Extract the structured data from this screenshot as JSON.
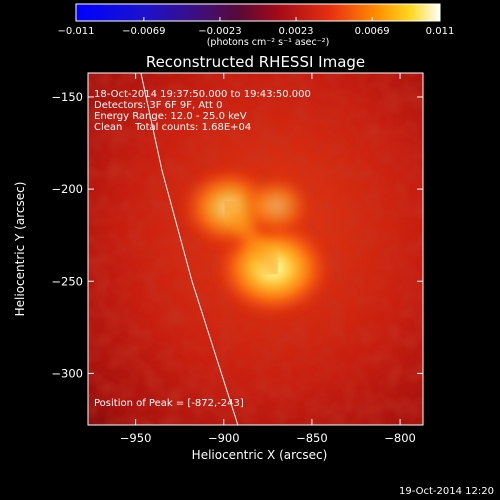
{
  "chart_data": {
    "type": "heatmap",
    "title": "Reconstructed RHESSI Image",
    "xlabel": "Heliocentric X (arcsec)",
    "ylabel": "Heliocentric Y (arcsec)",
    "xlim": [
      -977,
      -787
    ],
    "ylim": [
      -328,
      -137
    ],
    "xticks": [
      -950,
      -900,
      -850,
      -800
    ],
    "yticks": [
      -150,
      -200,
      -250,
      -300
    ],
    "xtick_labels": [
      "−950",
      "−900",
      "−850",
      "−800"
    ],
    "ytick_labels": [
      "−150",
      "−200",
      "−250",
      "−300"
    ],
    "grid": false,
    "colorbar": {
      "min": -0.011,
      "max": 0.011,
      "tick_values": [
        -0.011,
        -0.0069,
        -0.0023,
        0.0023,
        0.0069,
        0.011
      ],
      "tick_labels": [
        "−0.011",
        "−0.0069",
        "−0.0023",
        "0.0023",
        "0.0069",
        "0.011"
      ],
      "units_label": "(photons cm⁻² s⁻¹ asec⁻²)",
      "colormap": "blue-purple-red-yellow-white"
    },
    "annotations": {
      "time_range": "18-Oct-2014 19:37:50.000 to 19:43:50.000",
      "detectors": "Detectors: 3F 6F 9F, Att 0",
      "energy": "Energy Range: 12.0 - 25.0 keV",
      "clean": "Clean    Total counts: 1.68E+04",
      "peak": "Position of Peak = [-872,-243]"
    },
    "sources": [
      {
        "x": -872,
        "y": -243,
        "relative_intensity": 1.0
      },
      {
        "x": -897,
        "y": -210,
        "relative_intensity": 0.78
      },
      {
        "x": -870,
        "y": -209,
        "relative_intensity": 0.55
      }
    ],
    "limb_curve": [
      {
        "x": -947,
        "y": -137
      },
      {
        "x": -935,
        "y": -190
      },
      {
        "x": -918,
        "y": -250
      },
      {
        "x": -898,
        "y": -310
      },
      {
        "x": -892,
        "y": -328
      }
    ],
    "peak_position": [
      -872,
      -243
    ]
  },
  "footer": {
    "timestamp": "19-Oct-2014 12:20"
  },
  "colors": {
    "background": "#000000",
    "text": "#ffffff",
    "limb": "#ffffff"
  }
}
